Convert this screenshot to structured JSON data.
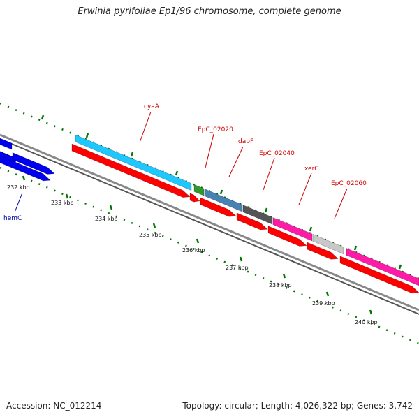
{
  "header": {
    "title": "Erwinia pyrifoliae Ep1/96 chromosome, complete genome"
  },
  "footer": {
    "accession": "Accession: NC_012214",
    "summary": "Topology: circular; Length: 4,026,322 bp; Genes: 3,742"
  },
  "scale": {
    "labels": [
      "232 kbp",
      "233 kbp",
      "234 kbp",
      "235 kbp",
      "236 kbp",
      "237 kbp",
      "238 kbp",
      "239 kbp",
      "240 kbp"
    ]
  },
  "genes": [
    {
      "name": "hemC",
      "color": "#0000aa"
    },
    {
      "name": "cyaA",
      "color": "#cc0000"
    },
    {
      "name": "EpC_02020",
      "color": "#cc0000"
    },
    {
      "name": "dapF",
      "color": "#cc0000"
    },
    {
      "name": "EpC_02040",
      "color": "#cc0000"
    },
    {
      "name": "xerC",
      "color": "#cc0000"
    },
    {
      "name": "EpC_02060",
      "color": "#cc0000"
    }
  ],
  "colors": {
    "backbone": "#888888",
    "cds": "#ff0000",
    "gene_blue": "#0000ee",
    "gene_cyan": "#1ec8ff",
    "gene_green": "#2e9a2e",
    "gene_steel": "#4682b4",
    "gene_dark": "#555555",
    "gene_magenta": "#ff1aa8",
    "gene_silver": "#c8c8c8",
    "ticks": "#007700"
  }
}
